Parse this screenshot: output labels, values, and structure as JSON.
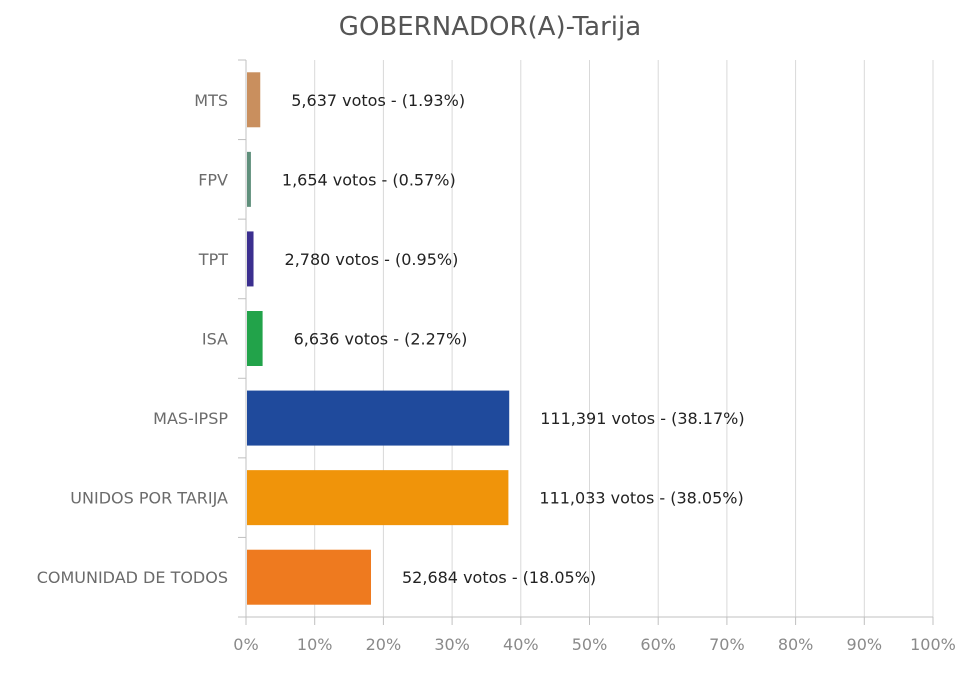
{
  "chart_data": {
    "type": "bar",
    "orientation": "horizontal",
    "title": "GOBERNADOR(A)-Tarija",
    "xlabel": "",
    "ylabel": "",
    "xlim": [
      0,
      100
    ],
    "grid": true,
    "categories": [
      "MTS",
      "FPV",
      "TPT",
      "ISA",
      "MAS-IPSP",
      "UNIDOS POR TARIJA",
      "COMUNIDAD DE TODOS"
    ],
    "values": [
      1.93,
      0.57,
      0.95,
      2.27,
      38.17,
      38.05,
      18.05
    ],
    "votes": [
      5637,
      1654,
      2780,
      6636,
      111391,
      111033,
      52684
    ],
    "data_labels": [
      "5,637 votos - (1.93%)",
      "1,654 votos - (0.57%)",
      "2,780 votos - (0.95%)",
      "6,636 votos - (2.27%)",
      "111,391 votos - (38.17%)",
      "111,033 votos - (38.05%)",
      "52,684 votos - (18.05%)"
    ],
    "colors": [
      "#c98f5e",
      "#5f8f7b",
      "#3b2f8f",
      "#22a34a",
      "#1f4a9c",
      "#f0940a",
      "#ee7a1f"
    ],
    "x_ticks": [
      "0%",
      "10%",
      "20%",
      "30%",
      "40%",
      "50%",
      "60%",
      "70%",
      "80%",
      "90%",
      "100%"
    ]
  }
}
